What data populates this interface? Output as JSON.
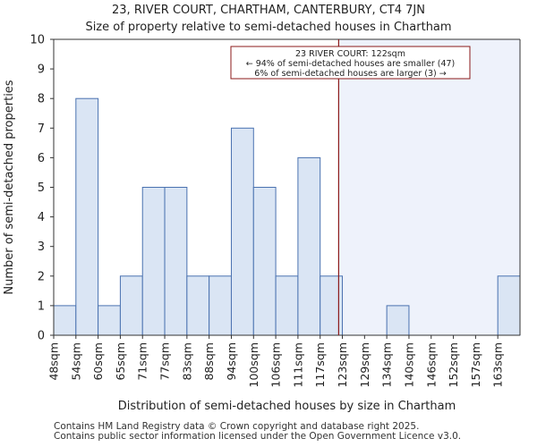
{
  "header": {
    "title_line1": "23, RIVER COURT, CHARTHAM, CANTERBURY, CT4 7JN",
    "title_line2": "Size of property relative to semi-detached houses in Chartham"
  },
  "footer": {
    "line1": "Contains HM Land Registry data © Crown copyright and database right 2025.",
    "line2": "Contains public sector information licensed under the Open Government Licence v3.0."
  },
  "chart_data": {
    "type": "bar",
    "xlabel": "Distribution of semi-detached houses by size in Chartham",
    "ylabel": "Number of semi-detached properties",
    "categories": [
      "48sqm",
      "54sqm",
      "60sqm",
      "65sqm",
      "71sqm",
      "77sqm",
      "83sqm",
      "88sqm",
      "94sqm",
      "100sqm",
      "106sqm",
      "111sqm",
      "117sqm",
      "123sqm",
      "129sqm",
      "134sqm",
      "140sqm",
      "146sqm",
      "152sqm",
      "157sqm",
      "163sqm"
    ],
    "values": [
      1,
      8,
      1,
      2,
      5,
      5,
      2,
      2,
      7,
      5,
      2,
      6,
      2,
      0,
      0,
      1,
      0,
      0,
      0,
      0,
      2
    ],
    "ylim": [
      0,
      10
    ],
    "yticks": [
      0,
      1,
      2,
      3,
      4,
      5,
      6,
      7,
      8,
      9,
      10
    ],
    "grid": false,
    "marker": {
      "value_sqm": 122,
      "label_line1": "23 RIVER COURT: 122sqm",
      "label_line2": "← 94% of semi-detached houses are smaller (47)",
      "label_line3": "6% of semi-detached houses are larger (3) →"
    },
    "colors": {
      "bar_fill": "#dae5f4",
      "bar_stroke": "#4a72b0",
      "marker_line": "#8b1a1a",
      "highlight_region": "#eef2fb"
    }
  }
}
